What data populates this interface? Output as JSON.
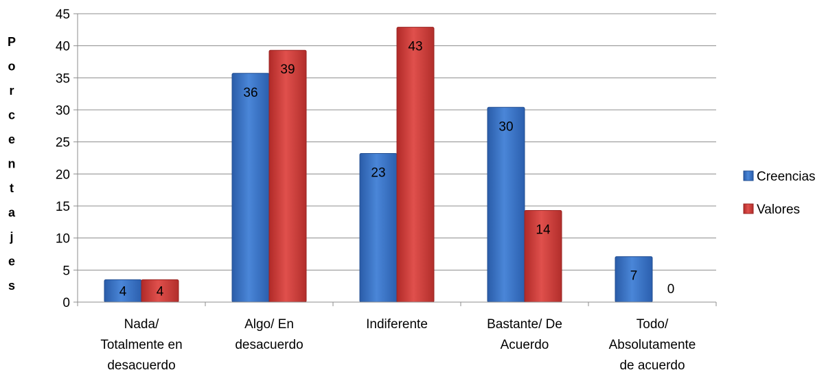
{
  "chart_data": {
    "type": "bar",
    "title": "",
    "xlabel": "",
    "ylabel": "Porcentajes",
    "ylim": [
      0,
      45
    ],
    "ytick_step": 5,
    "grid": true,
    "legend_position": "right",
    "categories": [
      [
        "Nada/",
        "Totalmente en",
        "desacuerdo"
      ],
      [
        "Algo/ En",
        "desacuerdo"
      ],
      [
        "Indiferente"
      ],
      [
        "Bastante/ De",
        "Acuerdo"
      ],
      [
        "Todo/",
        "Absolutamente",
        "de acuerdo"
      ]
    ],
    "series": [
      {
        "name": "Creencias",
        "color": "#3b73c4",
        "values": [
          3.5,
          35.7,
          23.2,
          30.4,
          7.1
        ],
        "labels": [
          "4",
          "36",
          "23",
          "30",
          "7"
        ]
      },
      {
        "name": "Valores",
        "color": "#c93a38",
        "values": [
          3.5,
          39.3,
          42.9,
          14.3,
          0
        ],
        "labels": [
          "4",
          "39",
          "43",
          "14",
          "0"
        ]
      }
    ]
  }
}
